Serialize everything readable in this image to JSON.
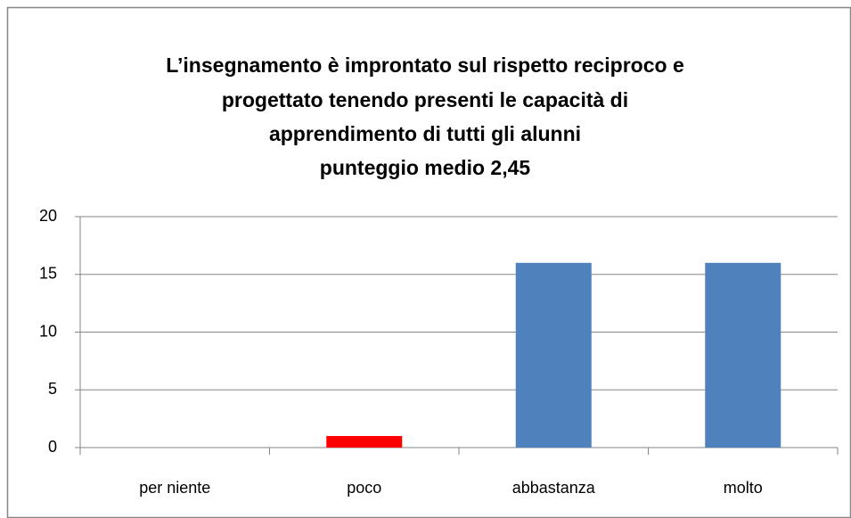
{
  "chart_data": {
    "type": "bar",
    "title": [
      "L’insegnamento è improntato sul rispetto reciproco e",
      "progettato tenendo presenti le capacità di",
      "apprendimento di tutti gli alunni",
      "punteggio medio 2,45"
    ],
    "categories": [
      "per niente",
      "poco",
      "abbastanza",
      "molto"
    ],
    "values": [
      0,
      1,
      16,
      16
    ],
    "colors": [
      "#4f81bd",
      "#ff0000",
      "#4f81bd",
      "#4f81bd"
    ],
    "ylim": [
      0,
      20
    ],
    "yticks": [
      0,
      5,
      10,
      15,
      20
    ],
    "grid": true
  }
}
